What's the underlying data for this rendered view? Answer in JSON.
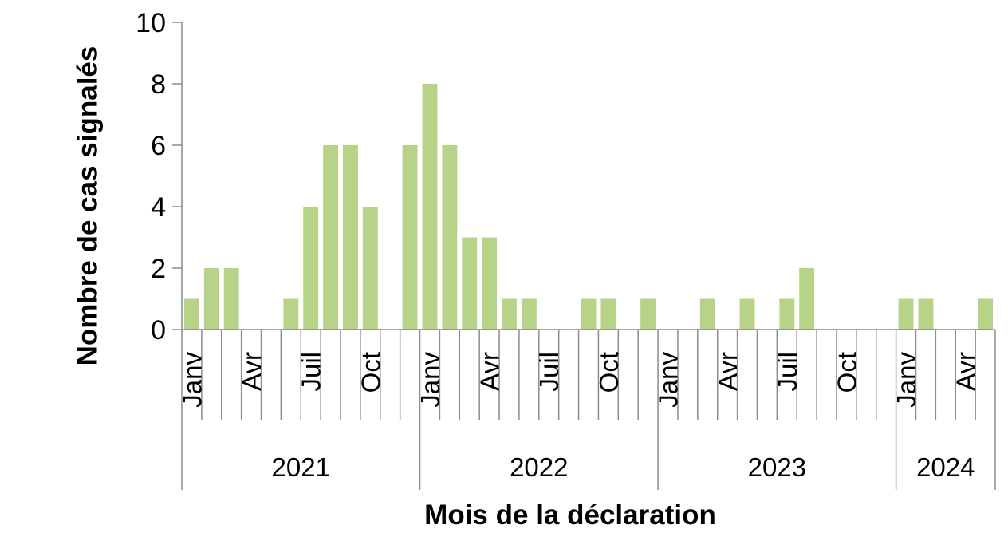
{
  "chart_data": {
    "type": "bar",
    "title": "",
    "xlabel": "Mois de la déclaration",
    "ylabel": "Nombre de cas signalés",
    "ylim": [
      0,
      10
    ],
    "yticks": [
      0,
      2,
      4,
      6,
      8,
      10
    ],
    "grid": false,
    "bar_color": "#b6d388",
    "axis_color": "#8c8c8c",
    "months": [
      "2021-01",
      "2021-02",
      "2021-03",
      "2021-04",
      "2021-05",
      "2021-06",
      "2021-07",
      "2021-08",
      "2021-09",
      "2021-10",
      "2021-11",
      "2021-12",
      "2022-01",
      "2022-02",
      "2022-03",
      "2022-04",
      "2022-05",
      "2022-06",
      "2022-07",
      "2022-08",
      "2022-09",
      "2022-10",
      "2022-11",
      "2022-12",
      "2023-01",
      "2023-02",
      "2023-03",
      "2023-04",
      "2023-05",
      "2023-06",
      "2023-07",
      "2023-08",
      "2023-09",
      "2023-10",
      "2023-11",
      "2023-12",
      "2024-01",
      "2024-02",
      "2024-03",
      "2024-04",
      "2024-05"
    ],
    "month_labels": [
      "Janv",
      "",
      "",
      "Avr",
      "",
      "",
      "Juil",
      "",
      "",
      "Oct",
      "",
      "",
      "Janv",
      "",
      "",
      "Avr",
      "",
      "",
      "Juil",
      "",
      "",
      "Oct",
      "",
      "",
      "Janv",
      "",
      "",
      "Avr",
      "",
      "",
      "Juil",
      "",
      "",
      "Oct",
      "",
      "",
      "Janv",
      "",
      "",
      "Avr",
      ""
    ],
    "values": [
      1,
      2,
      2,
      0,
      0,
      1,
      4,
      6,
      6,
      4,
      0,
      6,
      8,
      6,
      3,
      3,
      1,
      1,
      0,
      0,
      1,
      1,
      0,
      1,
      0,
      0,
      1,
      0,
      1,
      0,
      1,
      2,
      0,
      0,
      0,
      0,
      1,
      1,
      0,
      0,
      1
    ],
    "years": [
      {
        "label": "2021",
        "months": 12
      },
      {
        "label": "2022",
        "months": 12
      },
      {
        "label": "2023",
        "months": 12
      },
      {
        "label": "2024",
        "months": 5
      }
    ]
  }
}
